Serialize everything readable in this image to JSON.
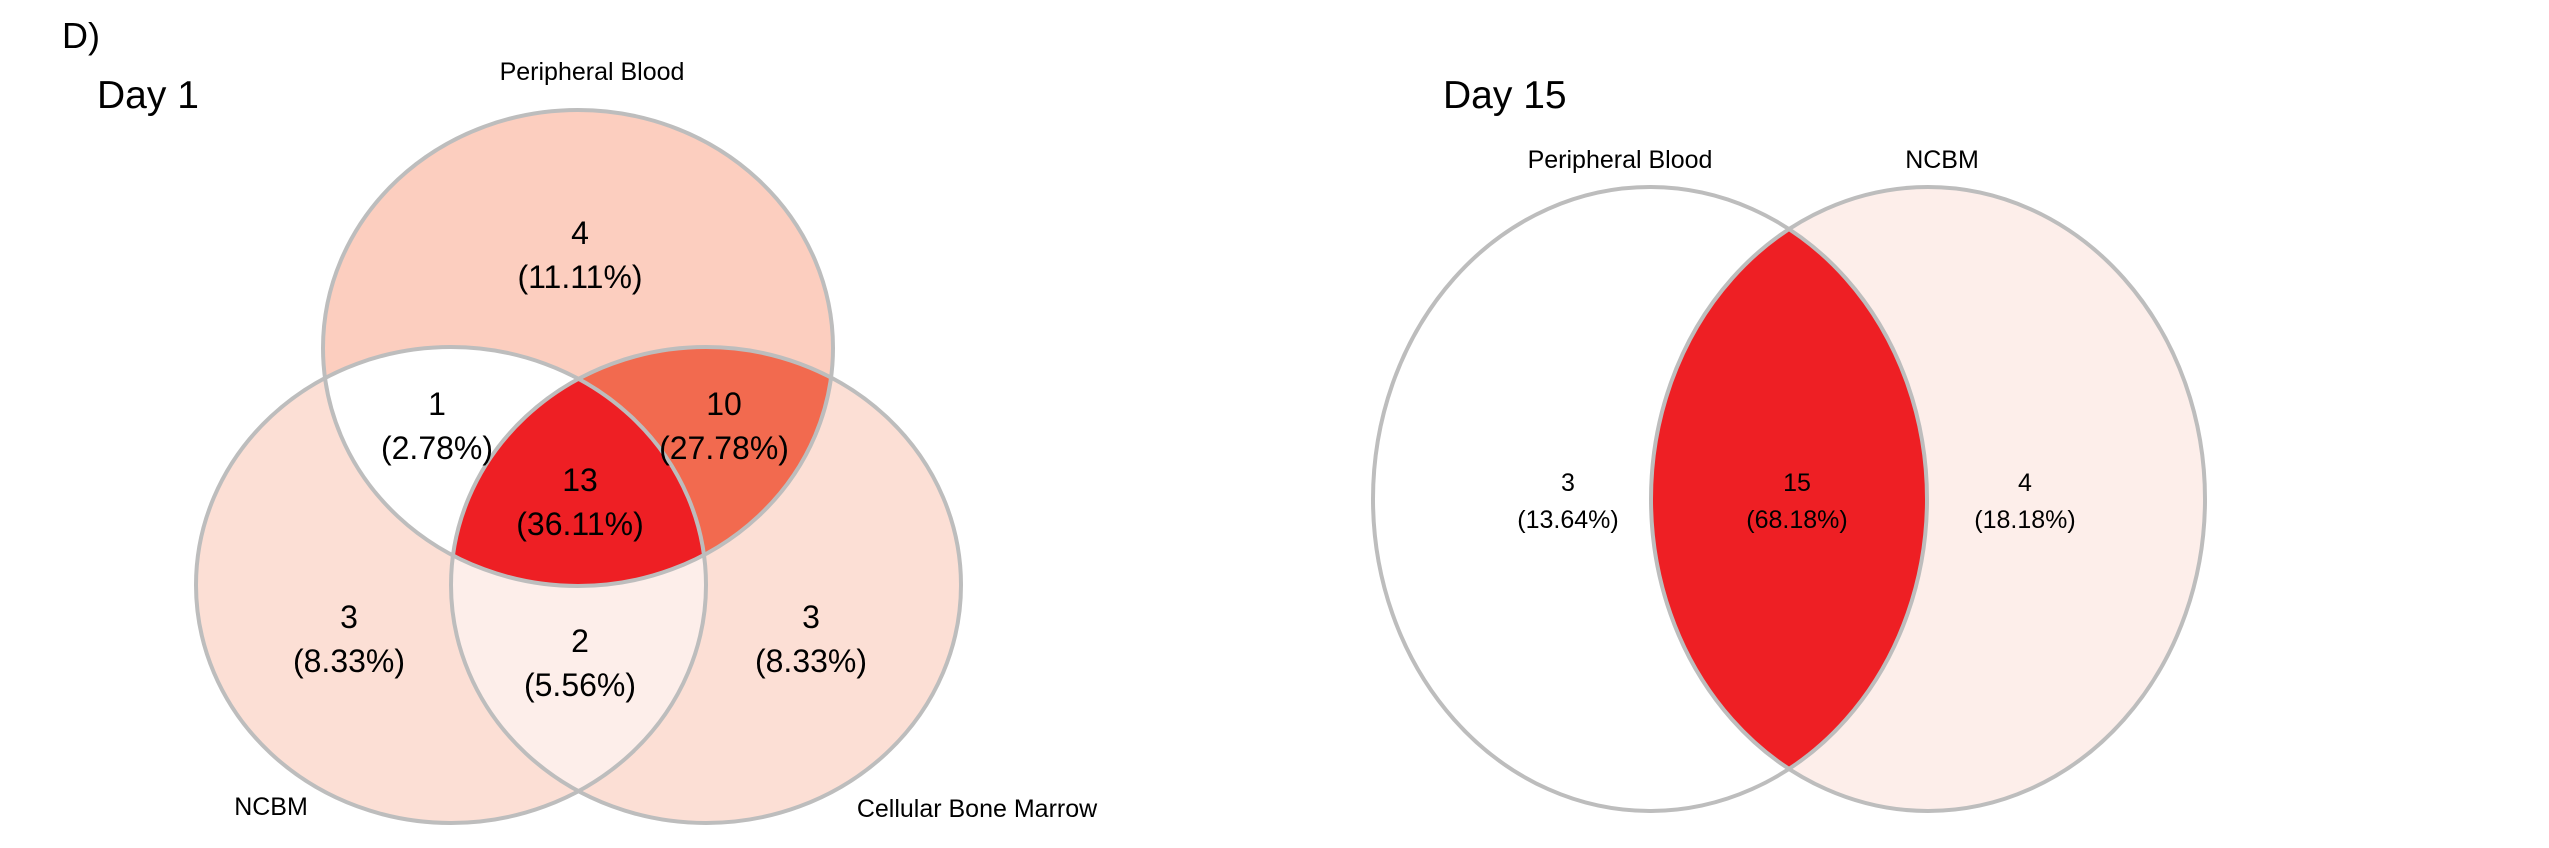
{
  "panel_letter": "D)",
  "colors": {
    "outline": "#bdbdbd",
    "v1_pb_only": "#fccebf",
    "v1_ncbm_only": "#fcdfd5",
    "v1_cbm_only": "#fcdfd5",
    "v1_pb_ncbm": "#ffffff",
    "v1_pb_cbm": "#f26a4f",
    "v1_ncbm_cbm": "#fdeeea",
    "v1_all": "#ee1f24",
    "v2_pb_only": "#ffffff",
    "v2_ncbm_only": "#fdeeea",
    "v2_both": "#ee1f24"
  },
  "venn1": {
    "title": "Day 1",
    "sets": {
      "pb": "Peripheral Blood",
      "ncbm": "NCBM",
      "cbm": "Cellular Bone Marrow"
    },
    "regions": {
      "pb_only": {
        "count": "4",
        "pct": "(11.11%)"
      },
      "pb_ncbm": {
        "count": "1",
        "pct": "(2.78%)"
      },
      "pb_cbm": {
        "count": "10",
        "pct": "(27.78%)"
      },
      "all": {
        "count": "13",
        "pct": "(36.11%)"
      },
      "ncbm_only": {
        "count": "3",
        "pct": "(8.33%)"
      },
      "ncbm_cbm": {
        "count": "2",
        "pct": "(5.56%)"
      },
      "cbm_only": {
        "count": "3",
        "pct": "(8.33%)"
      }
    }
  },
  "venn2": {
    "title": "Day 15",
    "sets": {
      "pb": "Peripheral Blood",
      "ncbm": "NCBM"
    },
    "regions": {
      "pb_only": {
        "count": "3",
        "pct": "(13.64%)"
      },
      "both": {
        "count": "15",
        "pct": "(68.18%)"
      },
      "ncbm_only": {
        "count": "4",
        "pct": "(18.18%)"
      }
    }
  }
}
